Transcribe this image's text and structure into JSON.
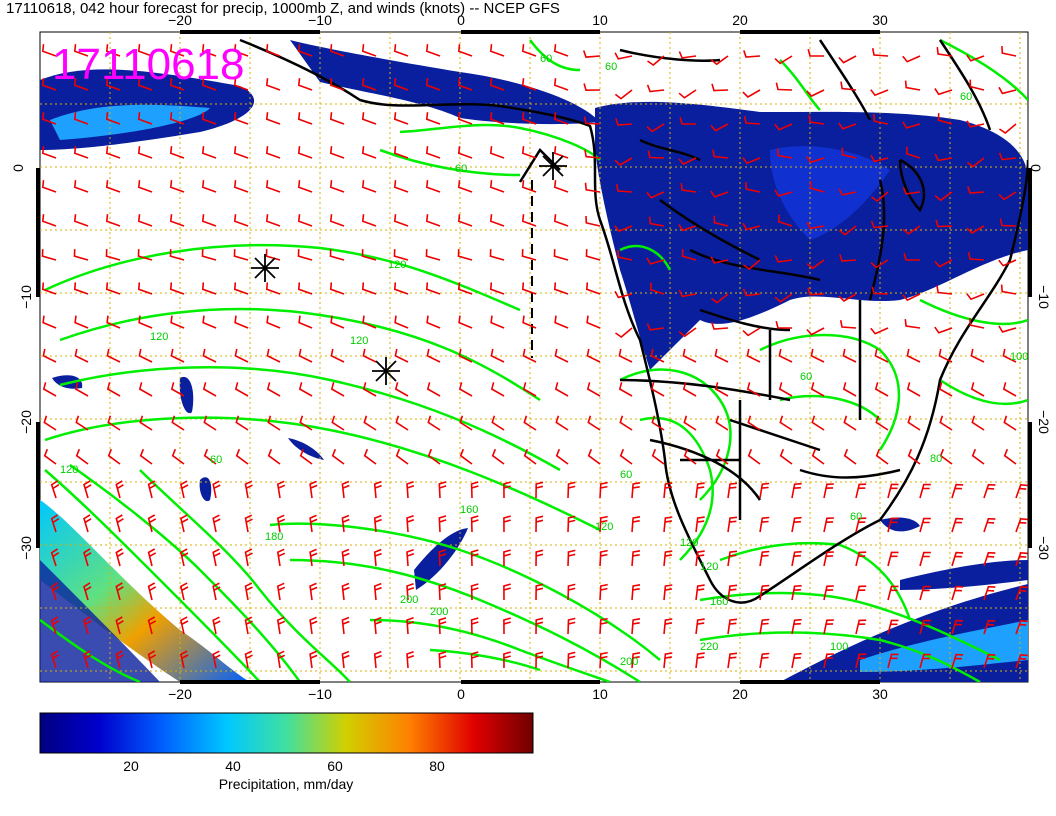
{
  "title": "17110618, 042 hour forecast for precip, 1000mb Z, and winds (knots) -- NCEP GFS",
  "stamp": "17110618",
  "axes": {
    "lon_ticks": [
      "−20",
      "−10",
      "0",
      "10",
      "20",
      "30"
    ],
    "lat_ticks": [
      "0",
      "−10",
      "−20",
      "−30"
    ]
  },
  "colorbar": {
    "labels": [
      "20",
      "40",
      "60",
      "80"
    ],
    "caption": "Precipitation, mm/day"
  },
  "colors": {
    "precip_low": "#0a1f9e",
    "contour": "#00ee00",
    "wind_barb": "#ee0000",
    "coast": "#000000",
    "grid": "#d9b000",
    "stamp": "#ff00ff"
  },
  "contour_labels": [
    "60",
    "60",
    "60",
    "120",
    "120",
    "120",
    "60",
    "60",
    "120",
    "160",
    "180",
    "120",
    "120",
    "120",
    "160",
    "200",
    "200",
    "200",
    "220",
    "80",
    "100",
    "60",
    "60",
    "60",
    "100"
  ]
}
